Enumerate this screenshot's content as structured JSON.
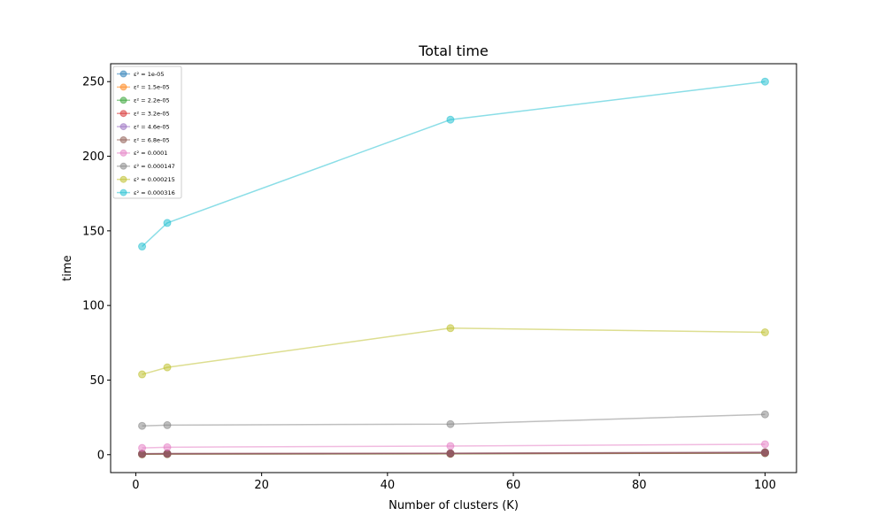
{
  "chart_data": {
    "type": "line",
    "title": "Total time",
    "xlabel": "Number of clusters (K)",
    "ylabel": "time",
    "xlim": [
      -4,
      105
    ],
    "ylim": [
      -12,
      262
    ],
    "xticks": [
      0,
      20,
      40,
      60,
      80,
      100
    ],
    "yticks": [
      0,
      50,
      100,
      150,
      200,
      250
    ],
    "grid": false,
    "legend_position": "top-left",
    "x": [
      1,
      5,
      50,
      100
    ],
    "series": [
      {
        "name": "ε² = 1e-05",
        "color": "#1f77b4",
        "values": [
          0.3,
          0.4,
          0.6,
          1.0
        ]
      },
      {
        "name": "ε² = 1.5e-05",
        "color": "#ff7f0e",
        "values": [
          0.3,
          0.4,
          0.6,
          1.1
        ]
      },
      {
        "name": "ε² = 2.2e-05",
        "color": "#2ca02c",
        "values": [
          0.4,
          0.5,
          0.7,
          1.2
        ]
      },
      {
        "name": "ε² = 3.2e-05",
        "color": "#d62728",
        "values": [
          0.5,
          0.6,
          0.8,
          1.3
        ]
      },
      {
        "name": "ε² = 4.6e-05",
        "color": "#9467bd",
        "values": [
          0.6,
          0.7,
          0.9,
          1.5
        ]
      },
      {
        "name": "ε² = 6.8e-05",
        "color": "#8c564b",
        "values": [
          0.7,
          0.8,
          1.0,
          1.7
        ]
      },
      {
        "name": "ε² = 0.0001",
        "color": "#e377c2",
        "values": [
          4.5,
          5.0,
          5.8,
          7.0
        ]
      },
      {
        "name": "ε² = 0.000147",
        "color": "#7f7f7f",
        "values": [
          19.3,
          19.8,
          20.5,
          27.0
        ]
      },
      {
        "name": "ε² = 0.000215",
        "color": "#bcbd22",
        "values": [
          53.8,
          58.5,
          84.8,
          82.0
        ]
      },
      {
        "name": "ε² = 0.000316",
        "color": "#17becf",
        "values": [
          139.5,
          155.3,
          224.5,
          250.0
        ]
      }
    ]
  }
}
